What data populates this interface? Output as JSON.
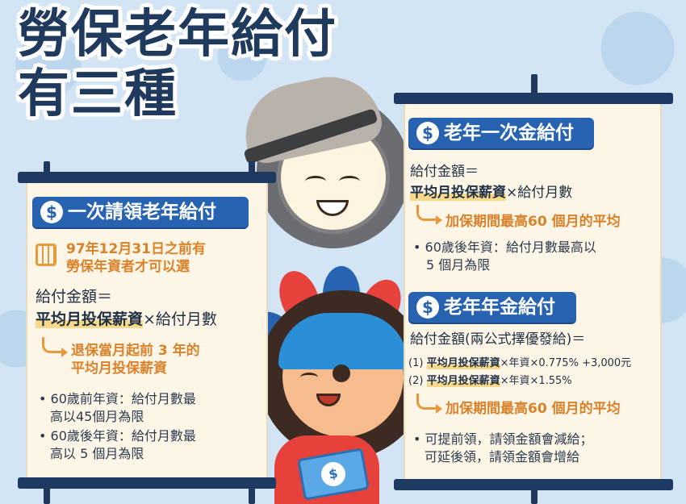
{
  "title": {
    "line1": "勞保老年給付",
    "line2": "有三種"
  },
  "left_panel": {
    "heading": "一次請領老年給付",
    "condition_line1": "97年12月31日之前有",
    "condition_line2": "勞保年資者才可以選",
    "formula_label": "給付金額＝",
    "formula_highlight": "平均月投保薪資",
    "formula_rest": "×給付月數",
    "note_line1": "退保當月起前 3 年的",
    "note_line2": "平均月投保薪資",
    "bullet1_line1": "• 60歲前年資：給付月數最",
    "bullet1_line2": "高以45個月為限",
    "bullet2_line1": "• 60歲後年資：給付月數最",
    "bullet2_line2": "高以 5 個月為限"
  },
  "right_top_panel": {
    "heading": "老年一次金給付",
    "formula_label": "給付金額＝",
    "formula_highlight": "平均月投保薪資",
    "formula_rest": "×給付月數",
    "note": "加保期間最高60 個月的平均",
    "bullet_line1": "• 60歲後年資：給付月數最高以",
    "bullet_line2": "5 個月為限"
  },
  "right_bottom_panel": {
    "heading": "老年年金給付",
    "formula_label": "給付金額(兩公式擇優發給)＝",
    "formula1_prefix": "(1)",
    "formula1_highlight": "平均月投保薪資",
    "formula1_rest": "×年資×0.775% +3,000元",
    "formula2_prefix": "(2)",
    "formula2_highlight": "平均月投保薪資",
    "formula2_rest": "×年資×1.55%",
    "note": "加保期間最高60 個月的平均",
    "bullet_line1": "• 可提前領，請領金額會減給；",
    "bullet_line2": "可延後領，請領金額會增給"
  },
  "icons": {
    "dollar_symbol": "$",
    "money_symbol": "$"
  }
}
